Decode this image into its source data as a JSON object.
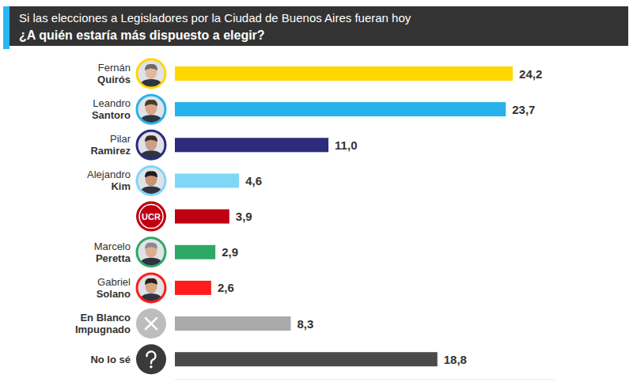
{
  "chart_data": {
    "type": "bar",
    "orientation": "horizontal",
    "title": "Si las elecciones a Legisladores por la Ciudad de Buenos Aires fueran hoy",
    "subtitle": "¿A quién estaría más dispuesto a elegir?",
    "categories": [
      "Fernán\nQuirós",
      "Leandro\nSantoro",
      "Pilar\nRamirez",
      "Alejandro\nKim",
      "UCR",
      "Marcelo\nPeretta",
      "Gabriel\nSolano",
      "En Blanco\nImpugnado",
      "No lo sé"
    ],
    "values": [
      24.2,
      23.7,
      11.0,
      4.6,
      3.9,
      2.9,
      2.6,
      8.3,
      18.8
    ],
    "value_labels": [
      "24,2",
      "23,7",
      "11,0",
      "4,6",
      "3,9",
      "2,9",
      "2,6",
      "8,3",
      "18,8"
    ],
    "colors": [
      "#ffd600",
      "#27b2ec",
      "#2e2a7c",
      "#7fd6f6",
      "#c00012",
      "#2fa866",
      "#ff1c1c",
      "#aaaaaa",
      "#4a4a4a"
    ],
    "xlim": [
      0,
      27.2
    ],
    "xticks": [],
    "data_labels": true,
    "tick_labels": false,
    "grid": false
  }
}
